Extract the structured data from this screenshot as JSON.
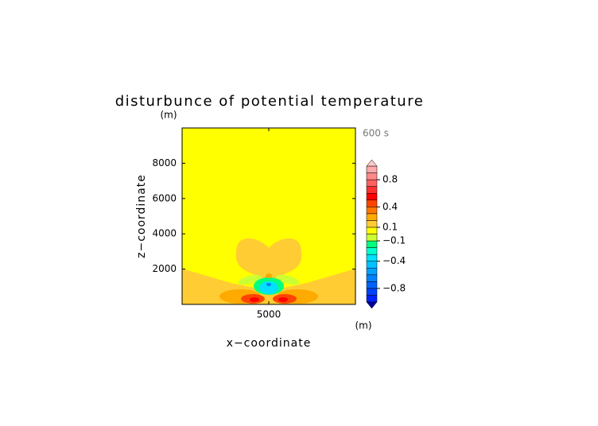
{
  "chart_data": {
    "type": "contour",
    "title": "disturbunce of potential temperature",
    "xlabel": "x−coordinate",
    "ylabel": "z−coordinate",
    "x_unit": "(m)",
    "y_unit": "(m)",
    "time_label": "600 s",
    "xlim": [
      0,
      10000
    ],
    "ylim": [
      0,
      10000
    ],
    "xticks": [
      5000
    ],
    "yticks": [
      2000,
      4000,
      6000,
      8000
    ],
    "background_color": "#ffff00",
    "colorbar": {
      "levels": [
        -1,
        -0.9,
        -0.8,
        -0.7,
        -0.6,
        -0.5,
        -0.4,
        -0.3,
        -0.2,
        -0.1,
        0,
        0.1,
        0.2,
        0.3,
        0.4,
        0.5,
        0.6,
        0.7,
        0.8,
        0.9,
        1
      ],
      "colors": [
        "#0020ff",
        "#0040ff",
        "#0060ff",
        "#0080ff",
        "#00a0ff",
        "#00c0ff",
        "#00e0ff",
        "#00ffcc",
        "#00ff80",
        "#ccff33",
        "#ffff00",
        "#ffcc33",
        "#ffaa00",
        "#ff7700",
        "#ff4400",
        "#ff0000",
        "#ff3030",
        "#ff6060",
        "#ff8888",
        "#ffaaaa"
      ],
      "extend_colors": [
        "#0000a0",
        "#ffc8c8"
      ],
      "ticks": [
        {
          "value": 0.8,
          "label": "0.8"
        },
        {
          "value": 0.4,
          "label": "0.4"
        },
        {
          "value": 0.1,
          "label": "0.1"
        },
        {
          "value": -0.1,
          "label": "−0.1"
        },
        {
          "value": -0.4,
          "label": "−0.4"
        },
        {
          "value": -0.8,
          "label": "−0.8"
        }
      ]
    }
  }
}
